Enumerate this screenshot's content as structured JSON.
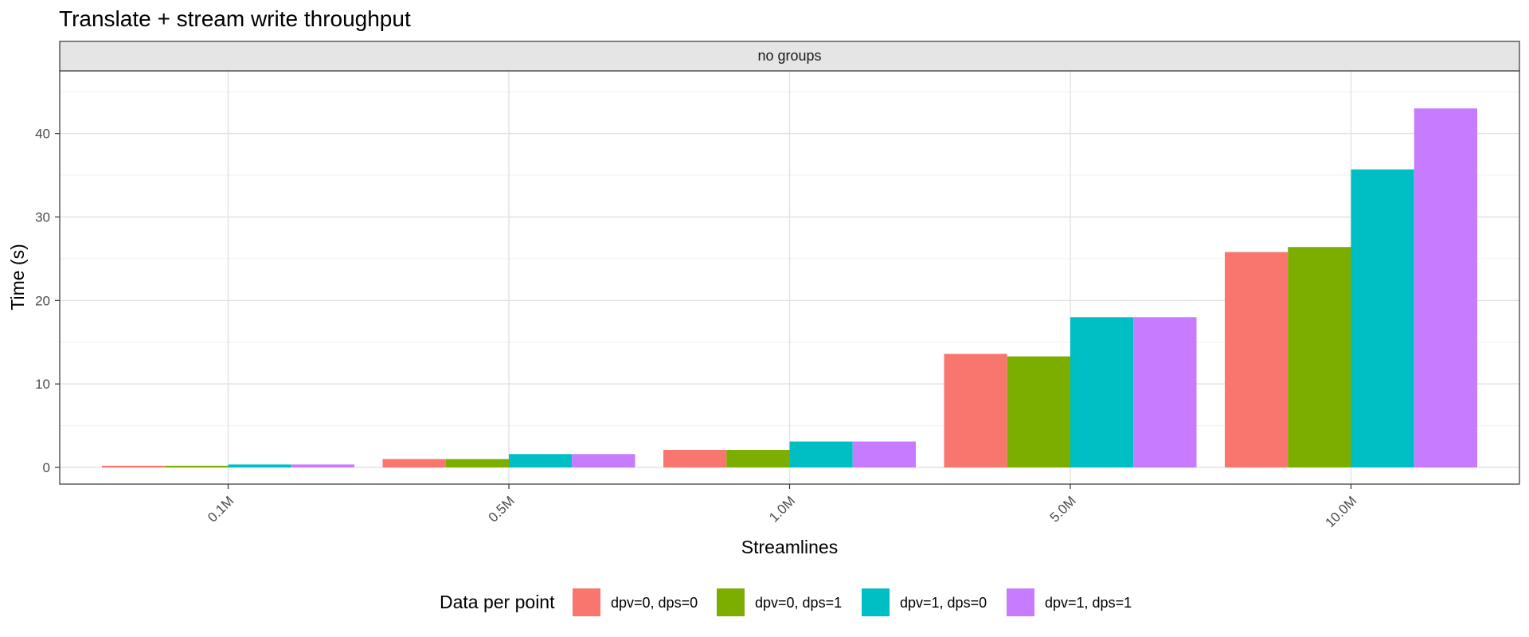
{
  "chart_data": {
    "type": "bar",
    "title": "Translate + stream write throughput",
    "facet_label": "no groups",
    "xlabel": "Streamlines",
    "ylabel": "Time (s)",
    "categories": [
      "0.1M",
      "0.5M",
      "1.0M",
      "5.0M",
      "10.0M"
    ],
    "ylim": [
      -2,
      47.5
    ],
    "yticks": [
      0,
      10,
      20,
      30,
      40
    ],
    "grid": true,
    "legend": {
      "title": "Data per point",
      "position": "bottom"
    },
    "series": [
      {
        "name": "dpv=0, dps=0",
        "color": "#F8766D",
        "values": [
          0.2,
          1.0,
          2.1,
          13.6,
          25.8
        ]
      },
      {
        "name": "dpv=0, dps=1",
        "color": "#7CAE00",
        "values": [
          0.2,
          1.0,
          2.1,
          13.3,
          26.4
        ]
      },
      {
        "name": "dpv=1, dps=0",
        "color": "#00BFC4",
        "values": [
          0.35,
          1.6,
          3.1,
          18.0,
          35.7
        ]
      },
      {
        "name": "dpv=1, dps=1",
        "color": "#C77CFF",
        "values": [
          0.35,
          1.6,
          3.1,
          18.0,
          43.0
        ]
      }
    ]
  }
}
